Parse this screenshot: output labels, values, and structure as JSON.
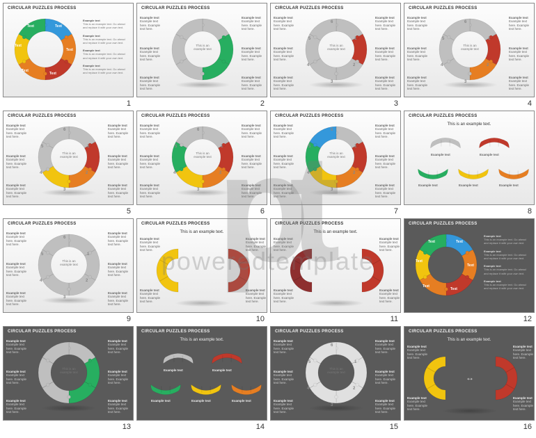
{
  "slide_title": "CIRCULAR PUZZLES PROCESS",
  "watermark": {
    "logo": "pt",
    "text": "poweredtemplate"
  },
  "palette": {
    "grey": "#bfbfbf",
    "grey_dark": "#a8a8a8",
    "red": "#c0392b",
    "orange": "#e67e22",
    "yellow": "#f1c40f",
    "green": "#27ae60",
    "teal": "#1abc9c",
    "blue": "#3498db",
    "blue_dark": "#2c7bb6",
    "maroon": "#8e2f2f"
  },
  "example_hd": "Example text",
  "example_body": "Example text here. Example text here.",
  "long_body": "This is an example text. Go ahead and replace it with your own text.",
  "center_caption": "This is an example text.",
  "seg_label_text": "Text",
  "seg_label_example": "Example text",
  "center_ring_text": "This is an example text",
  "numbers": [
    "1",
    "2",
    "3",
    "4",
    "5",
    "6"
  ],
  "slides": [
    {
      "n": 1,
      "bg": "light",
      "layout": "donut-left-text-right",
      "segments": [
        {
          "c": "#3498db"
        },
        {
          "c": "#e67e22"
        },
        {
          "c": "#c0392b"
        },
        {
          "c": "#e67e22"
        },
        {
          "c": "#f1c40f"
        },
        {
          "c": "#27ae60"
        }
      ],
      "show_labels": true,
      "side_blocks": 4
    },
    {
      "n": 2,
      "bg": "light",
      "layout": "donut-center",
      "segments": [
        {
          "c": "#bfbfbf"
        },
        {
          "c": "#27ae60"
        },
        {
          "c": "#27ae60"
        },
        {
          "c": "#bfbfbf"
        },
        {
          "c": "#bfbfbf"
        },
        {
          "c": "#bfbfbf"
        }
      ],
      "anno_pos": [
        "tl",
        "tr",
        "r",
        "br",
        "bl",
        "l"
      ]
    },
    {
      "n": 3,
      "bg": "light",
      "layout": "donut-center-numbered",
      "segments": [
        {
          "c": "#bfbfbf"
        },
        {
          "c": "#c0392b"
        },
        {
          "c": "#bfbfbf"
        },
        {
          "c": "#bfbfbf"
        },
        {
          "c": "#bfbfbf"
        },
        {
          "c": "#bfbfbf"
        }
      ],
      "nums": true,
      "anno_pos": [
        "tl",
        "tr",
        "r",
        "br",
        "bl",
        "l"
      ]
    },
    {
      "n": 4,
      "bg": "light",
      "layout": "donut-center-numbered",
      "segments": [
        {
          "c": "#bfbfbf"
        },
        {
          "c": "#c0392b"
        },
        {
          "c": "#e67e22"
        },
        {
          "c": "#bfbfbf"
        },
        {
          "c": "#bfbfbf"
        },
        {
          "c": "#bfbfbf"
        }
      ],
      "nums": true,
      "anno_pos": [
        "tl",
        "tr",
        "r",
        "br",
        "bl",
        "l"
      ]
    },
    {
      "n": 5,
      "bg": "light",
      "layout": "donut-center-numbered",
      "segments": [
        {
          "c": "#bfbfbf"
        },
        {
          "c": "#c0392b"
        },
        {
          "c": "#e67e22"
        },
        {
          "c": "#f1c40f"
        },
        {
          "c": "#bfbfbf"
        },
        {
          "c": "#bfbfbf"
        }
      ],
      "nums": true,
      "anno_pos": [
        "tl",
        "tr",
        "r",
        "br",
        "bl",
        "l"
      ]
    },
    {
      "n": 6,
      "bg": "light",
      "layout": "donut-center-numbered",
      "segments": [
        {
          "c": "#bfbfbf"
        },
        {
          "c": "#c0392b"
        },
        {
          "c": "#e67e22"
        },
        {
          "c": "#f1c40f"
        },
        {
          "c": "#27ae60"
        },
        {
          "c": "#bfbfbf"
        }
      ],
      "nums": true,
      "anno_pos": [
        "tl",
        "tr",
        "r",
        "br",
        "bl",
        "l"
      ]
    },
    {
      "n": 7,
      "bg": "light",
      "layout": "donut-center-numbered",
      "segments": [
        {
          "c": "#bfbfbf"
        },
        {
          "c": "#c0392b"
        },
        {
          "c": "#e67e22"
        },
        {
          "c": "#f1c40f"
        },
        {
          "c": "#27ae60"
        },
        {
          "c": "#3498db"
        }
      ],
      "nums": true,
      "anno_pos": [
        "tl",
        "tr",
        "r",
        "br",
        "bl",
        "l"
      ]
    },
    {
      "n": 8,
      "bg": "light",
      "layout": "arc-grid",
      "caption": true,
      "arcs": [
        {
          "c": "#bfbfbf",
          "dir": "up"
        },
        {
          "c": "#c0392b",
          "dir": "up"
        },
        {
          "c": "#27ae60",
          "dir": "down"
        },
        {
          "c": "#f1c40f",
          "dir": "down"
        },
        {
          "c": "#e67e22",
          "dir": "down"
        }
      ]
    },
    {
      "n": 9,
      "bg": "light",
      "layout": "donut-center-numbered",
      "segments": [
        {
          "c": "#bfbfbf"
        },
        {
          "c": "#bfbfbf"
        },
        {
          "c": "#bfbfbf"
        },
        {
          "c": "#bfbfbf"
        },
        {
          "c": "#bfbfbf"
        },
        {
          "c": "#bfbfbf"
        }
      ],
      "nums": true,
      "anno_pos": [
        "tl",
        "tr",
        "r",
        "br",
        "bl",
        "l"
      ]
    },
    {
      "n": 10,
      "bg": "light",
      "layout": "half-arcs",
      "caption": true,
      "halves": [
        {
          "c": "#f1c40f",
          "side": "left"
        },
        {
          "c": "#c0392b",
          "side": "right"
        }
      ]
    },
    {
      "n": 11,
      "bg": "light",
      "layout": "half-arcs",
      "caption": true,
      "halves": [
        {
          "c": "#8e2f2f",
          "side": "left"
        },
        {
          "c": "#c0392b",
          "side": "right"
        }
      ]
    },
    {
      "n": 12,
      "bg": "dark",
      "layout": "donut-left-text-right",
      "segments": [
        {
          "c": "#3498db"
        },
        {
          "c": "#e67e22"
        },
        {
          "c": "#c0392b"
        },
        {
          "c": "#e67e22"
        },
        {
          "c": "#f1c40f"
        },
        {
          "c": "#27ae60"
        }
      ],
      "show_labels": true,
      "side_blocks": 4
    },
    {
      "n": 13,
      "bg": "dark",
      "layout": "donut-center",
      "segments": [
        {
          "c": "#bfbfbf"
        },
        {
          "c": "#27ae60"
        },
        {
          "c": "#27ae60"
        },
        {
          "c": "#bfbfbf"
        },
        {
          "c": "#bfbfbf"
        },
        {
          "c": "#bfbfbf"
        }
      ],
      "anno_pos": [
        "tl",
        "tr",
        "r",
        "br",
        "bl",
        "l"
      ]
    },
    {
      "n": 14,
      "bg": "dark",
      "layout": "arc-grid",
      "caption": true,
      "arcs": [
        {
          "c": "#bfbfbf",
          "dir": "up"
        },
        {
          "c": "#c0392b",
          "dir": "up"
        },
        {
          "c": "#27ae60",
          "dir": "down"
        },
        {
          "c": "#f1c40f",
          "dir": "down"
        },
        {
          "c": "#e67e22",
          "dir": "down"
        }
      ]
    },
    {
      "n": 15,
      "bg": "dark",
      "layout": "donut-center-numbered",
      "segments": [
        {
          "c": "#e0e0e0"
        },
        {
          "c": "#e0e0e0"
        },
        {
          "c": "#e0e0e0"
        },
        {
          "c": "#e0e0e0"
        },
        {
          "c": "#e0e0e0"
        },
        {
          "c": "#e0e0e0"
        }
      ],
      "nums": true,
      "anno_pos": [
        "tl",
        "tr",
        "r",
        "br",
        "bl",
        "l"
      ]
    },
    {
      "n": 16,
      "bg": "dark",
      "layout": "half-arcs-arrow",
      "caption": true,
      "halves": [
        {
          "c": "#f1c40f",
          "side": "left"
        },
        {
          "c": "#c0392b",
          "side": "right"
        }
      ]
    }
  ]
}
